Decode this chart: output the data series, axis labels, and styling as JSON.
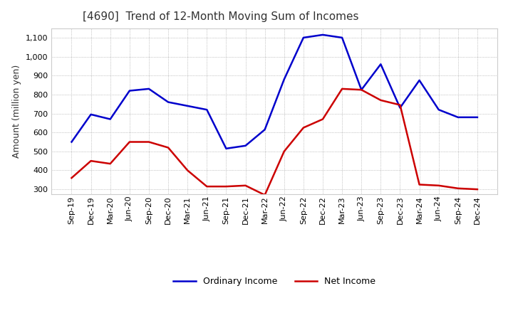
{
  "title": "[4690]  Trend of 12-Month Moving Sum of Incomes",
  "ylabel": "Amount (million yen)",
  "background_color": "#ffffff",
  "plot_bg_color": "#ffffff",
  "grid_color": "#999999",
  "labels": [
    "Sep-19",
    "Dec-19",
    "Mar-20",
    "Jun-20",
    "Sep-20",
    "Dec-20",
    "Mar-21",
    "Jun-21",
    "Sep-21",
    "Dec-21",
    "Mar-22",
    "Jun-22",
    "Sep-22",
    "Dec-22",
    "Mar-23",
    "Jun-23",
    "Sep-23",
    "Dec-23",
    "Mar-24",
    "Jun-24",
    "Sep-24",
    "Dec-24"
  ],
  "ordinary_income": [
    550,
    695,
    670,
    820,
    830,
    760,
    740,
    720,
    515,
    530,
    615,
    880,
    1100,
    1115,
    1100,
    825,
    960,
    730,
    875,
    720,
    680,
    680
  ],
  "net_income": [
    360,
    450,
    435,
    550,
    550,
    520,
    400,
    315,
    315,
    320,
    270,
    500,
    625,
    670,
    830,
    825,
    770,
    745,
    325,
    320,
    305,
    300
  ],
  "ordinary_color": "#0000cc",
  "net_color": "#cc0000",
  "ylim_min": 275,
  "ylim_max": 1150,
  "yticks": [
    300,
    400,
    500,
    600,
    700,
    800,
    900,
    1000,
    1100
  ],
  "title_fontsize": 11,
  "title_color": "#333333",
  "axis_label_fontsize": 9,
  "tick_fontsize": 8,
  "legend_fontsize": 9,
  "line_width": 1.8
}
